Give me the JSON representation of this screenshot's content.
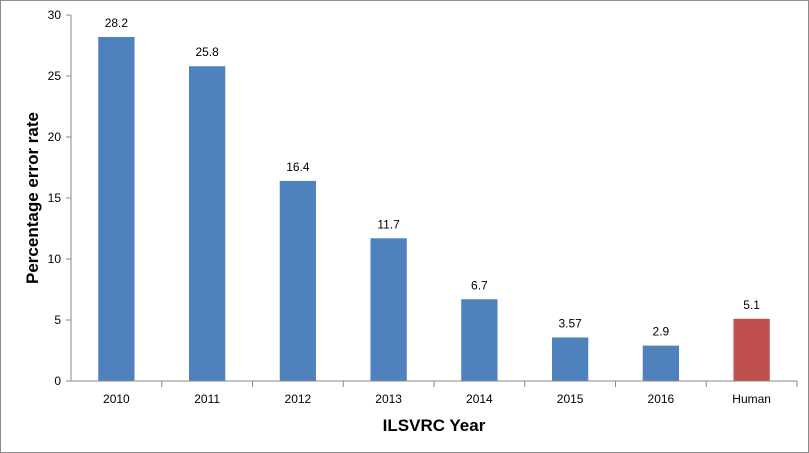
{
  "chart_data": {
    "type": "bar",
    "title": "",
    "xlabel": "ILSVRC Year",
    "ylabel": "Percentage error rate",
    "categories": [
      "2010",
      "2011",
      "2012",
      "2013",
      "2014",
      "2015",
      "2016",
      "Human"
    ],
    "values": [
      28.2,
      25.8,
      16.4,
      11.7,
      6.7,
      3.57,
      2.9,
      5.1
    ],
    "data_labels": [
      "28.2",
      "25.8",
      "16.4",
      "11.7",
      "6.7",
      "3.57",
      "2.9",
      "5.1"
    ],
    "ylim": [
      0,
      30
    ],
    "yticks": [
      0,
      5,
      10,
      15,
      20,
      25,
      30
    ],
    "ytick_labels": [
      "0",
      "5",
      "10",
      "15",
      "20",
      "25",
      "30"
    ],
    "grid": false,
    "legend": "none",
    "bar_colors": [
      "#4f81bd",
      "#4f81bd",
      "#4f81bd",
      "#4f81bd",
      "#4f81bd",
      "#4f81bd",
      "#4f81bd",
      "#c0504d"
    ]
  }
}
